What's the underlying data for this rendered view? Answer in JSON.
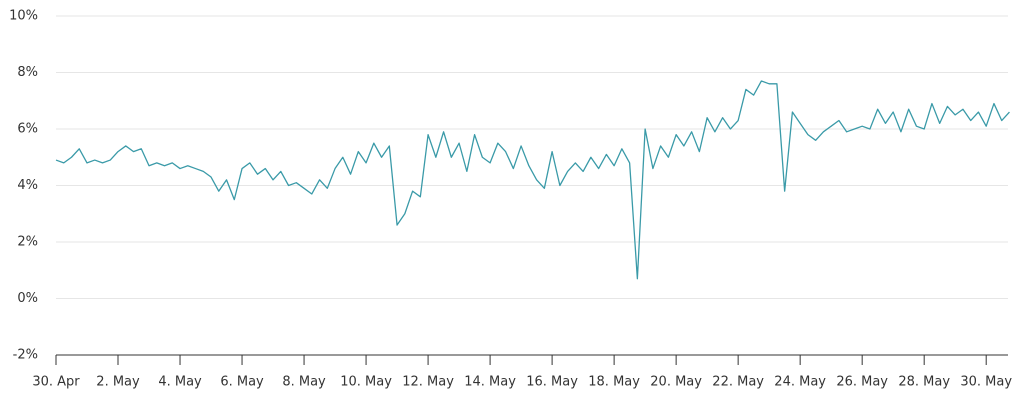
{
  "chart_data": {
    "type": "line",
    "x": [
      0,
      0.25,
      0.5,
      0.75,
      1,
      1.25,
      1.5,
      1.75,
      2,
      2.25,
      2.5,
      2.75,
      3,
      3.25,
      3.5,
      3.75,
      4,
      4.25,
      4.5,
      4.75,
      5,
      5.25,
      5.5,
      5.75,
      6,
      6.25,
      6.5,
      6.75,
      7,
      7.25,
      7.5,
      7.75,
      8,
      8.25,
      8.5,
      8.75,
      9,
      9.25,
      9.5,
      9.75,
      10,
      10.25,
      10.5,
      10.75,
      11,
      11.25,
      11.5,
      11.75,
      12,
      12.25,
      12.5,
      12.75,
      13,
      13.25,
      13.5,
      13.75,
      14,
      14.25,
      14.5,
      14.75,
      15,
      15.25,
      15.5,
      15.75,
      16,
      16.25,
      16.5,
      16.75,
      17,
      17.25,
      17.5,
      17.75,
      18,
      18.25,
      18.5,
      18.75,
      19,
      19.25,
      19.5,
      19.75,
      20,
      20.25,
      20.5,
      20.75,
      21,
      21.25,
      21.5,
      21.75,
      22,
      22.25,
      22.5,
      22.75,
      23,
      23.25,
      23.5,
      23.75,
      24,
      24.25,
      24.5,
      24.75,
      25,
      25.25,
      25.5,
      25.75,
      26,
      26.25,
      26.5,
      26.75,
      27,
      27.25,
      27.5,
      27.75,
      28,
      28.25,
      28.5,
      28.75,
      29,
      29.25,
      29.5,
      29.75,
      30,
      30.25,
      30.5,
      30.75
    ],
    "series": [
      {
        "color": "#3a9aa8",
        "values": [
          4.9,
          4.8,
          5.0,
          5.3,
          4.8,
          4.9,
          4.8,
          4.9,
          5.2,
          5.4,
          5.2,
          5.3,
          4.7,
          4.8,
          4.7,
          4.8,
          4.6,
          4.7,
          4.6,
          4.5,
          4.3,
          3.8,
          4.2,
          3.5,
          4.6,
          4.8,
          4.4,
          4.6,
          4.2,
          4.5,
          4.0,
          4.1,
          3.9,
          3.7,
          4.2,
          3.9,
          4.6,
          5.0,
          4.4,
          5.2,
          4.8,
          5.5,
          5.0,
          5.4,
          2.6,
          3.0,
          3.8,
          3.6,
          5.8,
          5.0,
          5.9,
          5.0,
          5.5,
          4.5,
          5.8,
          5.0,
          4.8,
          5.5,
          5.2,
          4.6,
          5.4,
          4.7,
          4.2,
          3.9,
          5.2,
          4.0,
          4.5,
          4.8,
          4.5,
          5.0,
          4.6,
          5.1,
          4.7,
          5.3,
          4.8,
          0.7,
          6.0,
          4.6,
          5.4,
          5.0,
          5.8,
          5.4,
          5.9,
          5.2,
          6.4,
          5.9,
          6.4,
          6.0,
          6.3,
          7.4,
          7.2,
          7.7,
          7.6,
          7.6,
          3.8,
          6.6,
          6.2,
          5.8,
          5.6,
          5.9,
          6.1,
          6.3,
          5.9,
          6.0,
          6.1,
          6.0,
          6.7,
          6.2,
          6.6,
          5.9,
          6.7,
          6.1,
          6.0,
          6.9,
          6.2,
          6.8,
          6.5,
          6.7,
          6.3,
          6.6,
          6.1,
          6.9,
          6.3,
          6.6
        ]
      }
    ],
    "xlim": [
      0,
      30.8
    ],
    "xticks": [
      {
        "value": 0,
        "label": "30. Apr"
      },
      {
        "value": 2,
        "label": "2. May"
      },
      {
        "value": 4,
        "label": "4. May"
      },
      {
        "value": 6,
        "label": "6. May"
      },
      {
        "value": 8,
        "label": "8. May"
      },
      {
        "value": 10,
        "label": "10. May"
      },
      {
        "value": 12,
        "label": "12. May"
      },
      {
        "value": 14,
        "label": "14. May"
      },
      {
        "value": 16,
        "label": "16. May"
      },
      {
        "value": 18,
        "label": "18. May"
      },
      {
        "value": 20,
        "label": "20. May"
      },
      {
        "value": 22,
        "label": "22. May"
      },
      {
        "value": 24,
        "label": "24. May"
      },
      {
        "value": 26,
        "label": "26. May"
      },
      {
        "value": 28,
        "label": "28. May"
      },
      {
        "value": 30,
        "label": "30. May"
      }
    ],
    "ylim": [
      -2,
      10
    ],
    "yticks": [
      {
        "value": -2,
        "label": "-2%"
      },
      {
        "value": 0,
        "label": "0%"
      },
      {
        "value": 2,
        "label": "2%"
      },
      {
        "value": 4,
        "label": "4%"
      },
      {
        "value": 6,
        "label": "6%"
      },
      {
        "value": 8,
        "label": "8%"
      },
      {
        "value": 10,
        "label": "10%"
      }
    ],
    "grid": true
  }
}
